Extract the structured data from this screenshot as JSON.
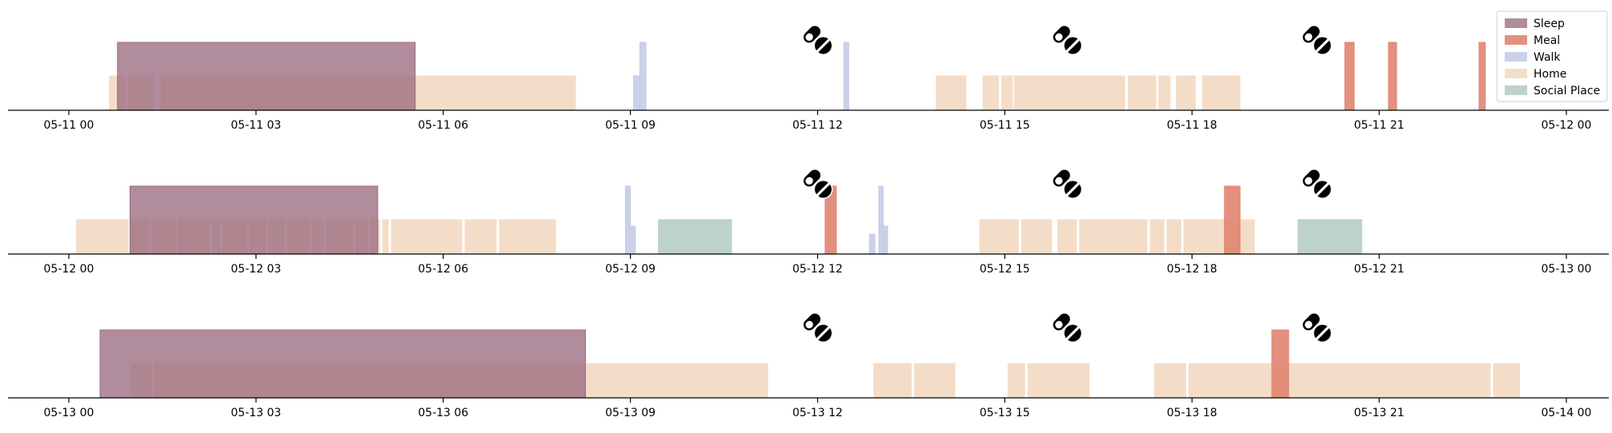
{
  "chart_data": {
    "type": "timeline",
    "colors": {
      "Sleep": "#9b6b80",
      "Meal": "#e08570",
      "Walk": "#c5cce6",
      "Home": "#f4ddc8",
      "Social Place": "#b6cdc2",
      "axis": "#000000",
      "icon": "#000000"
    },
    "legend": {
      "position": "top-right",
      "entries": [
        "Sleep",
        "Meal",
        "Walk",
        "Home",
        "Social Place"
      ]
    },
    "marker_icon": "medication-pill-icon",
    "panels": [
      {
        "day": "05-11",
        "ticks": [
          "05-11 00",
          "05-11 03",
          "05-11 06",
          "05-11 09",
          "05-11 12",
          "05-11 15",
          "05-11 18",
          "05-11 21",
          "05-12 00"
        ],
        "pill_times": [
          12.0,
          16.0,
          20.0
        ],
        "events": [
          {
            "type": "Home",
            "start": 0.65,
            "end": 0.9
          },
          {
            "type": "Home",
            "start": 0.95,
            "end": 1.35
          },
          {
            "type": "Home",
            "start": 1.48,
            "end": 8.12
          },
          {
            "type": "Sleep",
            "start": 0.78,
            "end": 5.55
          },
          {
            "type": "Walk",
            "start": 9.05,
            "end": 9.15,
            "level": "home"
          },
          {
            "type": "Walk",
            "start": 9.15,
            "end": 9.25
          },
          {
            "type": "Walk",
            "start": 12.42,
            "end": 12.5
          },
          {
            "type": "Home",
            "start": 13.9,
            "end": 14.38
          },
          {
            "type": "Home",
            "start": 14.65,
            "end": 14.9
          },
          {
            "type": "Home",
            "start": 14.95,
            "end": 15.12
          },
          {
            "type": "Home",
            "start": 15.15,
            "end": 16.92
          },
          {
            "type": "Home",
            "start": 16.98,
            "end": 17.42
          },
          {
            "type": "Home",
            "start": 17.47,
            "end": 17.65
          },
          {
            "type": "Home",
            "start": 17.75,
            "end": 18.05
          },
          {
            "type": "Home",
            "start": 18.17,
            "end": 18.77
          },
          {
            "type": "Meal",
            "start": 20.45,
            "end": 20.6
          },
          {
            "type": "Meal",
            "start": 21.15,
            "end": 21.28
          },
          {
            "type": "Meal",
            "start": 22.6,
            "end": 22.7
          }
        ]
      },
      {
        "day": "05-12",
        "ticks": [
          "05-12 00",
          "05-12 03",
          "05-12 06",
          "05-12 09",
          "05-12 12",
          "05-12 15",
          "05-12 18",
          "05-12 21",
          "05-13 00"
        ],
        "pill_times": [
          12.0,
          16.0,
          20.0
        ],
        "events": [
          {
            "type": "Home",
            "start": 0.12,
            "end": 0.95
          },
          {
            "type": "Home",
            "start": 1.0,
            "end": 1.28
          },
          {
            "type": "Home",
            "start": 1.33,
            "end": 1.7
          },
          {
            "type": "Home",
            "start": 1.75,
            "end": 2.25
          },
          {
            "type": "Home",
            "start": 2.3,
            "end": 2.42
          },
          {
            "type": "Home",
            "start": 2.47,
            "end": 2.85
          },
          {
            "type": "Home",
            "start": 2.9,
            "end": 3.15
          },
          {
            "type": "Home",
            "start": 3.2,
            "end": 3.45
          },
          {
            "type": "Home",
            "start": 3.5,
            "end": 3.85
          },
          {
            "type": "Home",
            "start": 3.9,
            "end": 4.08
          },
          {
            "type": "Home",
            "start": 4.13,
            "end": 4.55
          },
          {
            "type": "Home",
            "start": 4.6,
            "end": 4.78
          },
          {
            "type": "Home",
            "start": 4.83,
            "end": 4.98
          },
          {
            "type": "Home",
            "start": 5.03,
            "end": 5.12
          },
          {
            "type": "Home",
            "start": 5.17,
            "end": 6.3
          },
          {
            "type": "Home",
            "start": 6.35,
            "end": 6.85
          },
          {
            "type": "Home",
            "start": 6.9,
            "end": 7.8
          },
          {
            "type": "Sleep",
            "start": 0.98,
            "end": 4.95
          },
          {
            "type": "Walk",
            "start": 8.92,
            "end": 9.0
          },
          {
            "type": "Walk",
            "start": 9.0,
            "end": 9.08,
            "level": "mid"
          },
          {
            "type": "Social Place",
            "start": 9.45,
            "end": 10.62
          },
          {
            "type": "Meal",
            "start": 12.12,
            "end": 12.3
          },
          {
            "type": "Walk",
            "start": 12.83,
            "end": 12.92,
            "level": "short"
          },
          {
            "type": "Walk",
            "start": 12.98,
            "end": 13.05
          },
          {
            "type": "Walk",
            "start": 13.05,
            "end": 13.12,
            "level": "mid"
          },
          {
            "type": "Home",
            "start": 14.6,
            "end": 15.22
          },
          {
            "type": "Home",
            "start": 15.27,
            "end": 15.75
          },
          {
            "type": "Home",
            "start": 15.85,
            "end": 16.15
          },
          {
            "type": "Home",
            "start": 16.2,
            "end": 17.28
          },
          {
            "type": "Home",
            "start": 17.33,
            "end": 17.55
          },
          {
            "type": "Home",
            "start": 17.6,
            "end": 17.82
          },
          {
            "type": "Home",
            "start": 17.87,
            "end": 19.0
          },
          {
            "type": "Meal",
            "start": 18.52,
            "end": 18.77
          },
          {
            "type": "Social Place",
            "start": 19.7,
            "end": 20.72
          }
        ]
      },
      {
        "day": "05-13",
        "ticks": [
          "05-13 00",
          "05-13 03",
          "05-13 06",
          "05-13 09",
          "05-13 12",
          "05-13 15",
          "05-13 18",
          "05-13 21",
          "05-14 00"
        ],
        "pill_times": [
          12.0,
          16.0,
          20.0
        ],
        "events": [
          {
            "type": "Home",
            "start": 1.0,
            "end": 1.32
          },
          {
            "type": "Home",
            "start": 1.37,
            "end": 11.2
          },
          {
            "type": "Sleep",
            "start": 0.5,
            "end": 8.28
          },
          {
            "type": "Home",
            "start": 12.9,
            "end": 13.5
          },
          {
            "type": "Home",
            "start": 13.55,
            "end": 14.2
          },
          {
            "type": "Home",
            "start": 15.05,
            "end": 15.32
          },
          {
            "type": "Home",
            "start": 15.37,
            "end": 16.35
          },
          {
            "type": "Home",
            "start": 17.4,
            "end": 17.9
          },
          {
            "type": "Home",
            "start": 17.95,
            "end": 22.78
          },
          {
            "type": "Home",
            "start": 22.83,
            "end": 23.25
          },
          {
            "type": "Meal",
            "start": 19.28,
            "end": 19.55
          }
        ]
      }
    ]
  }
}
